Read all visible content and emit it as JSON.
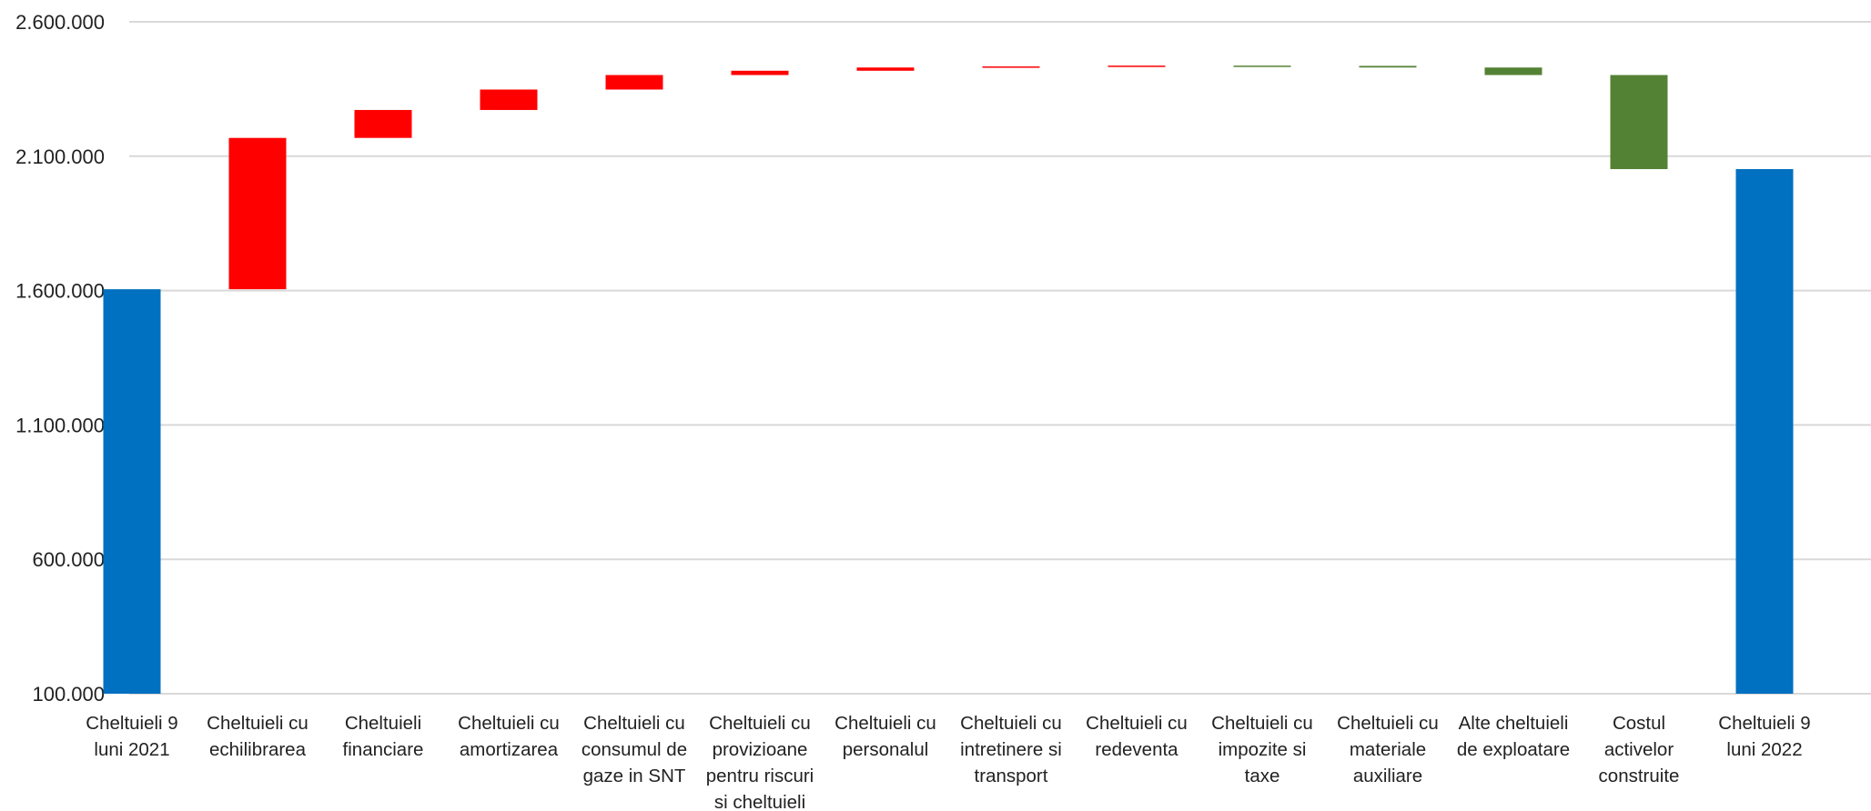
{
  "chart_data": {
    "type": "waterfall",
    "categories": [
      [
        "Cheltuieli 9",
        "luni 2021"
      ],
      [
        "Cheltuieli cu",
        "echilibrarea"
      ],
      [
        "Cheltuieli",
        "financiare"
      ],
      [
        "Cheltuieli cu",
        "amortizarea"
      ],
      [
        "Cheltuieli cu",
        "consumul de",
        "gaze in SNT"
      ],
      [
        "Cheltuieli cu",
        "provizioane",
        "pentru riscuri",
        "si cheltuieli"
      ],
      [
        "Cheltuieli cu",
        "personalul"
      ],
      [
        "Cheltuieli cu",
        "intretinere si",
        "transport"
      ],
      [
        "Cheltuieli cu",
        "redeventa"
      ],
      [
        "Cheltuieli cu",
        "impozite si",
        "taxe"
      ],
      [
        "Cheltuieli cu",
        "materiale",
        "auxiliare"
      ],
      [
        "Alte cheltuieli",
        "de exploatare"
      ],
      [
        "Costul",
        "activelor",
        "construite"
      ],
      [
        "Cheltuieli 9",
        "luni 2022"
      ]
    ],
    "bars": [
      {
        "start": 100000,
        "end": 1605000,
        "kind": "total"
      },
      {
        "start": 1605000,
        "end": 2168000,
        "kind": "increase"
      },
      {
        "start": 2168000,
        "end": 2272000,
        "kind": "increase"
      },
      {
        "start": 2272000,
        "end": 2348000,
        "kind": "increase"
      },
      {
        "start": 2348000,
        "end": 2402000,
        "kind": "increase"
      },
      {
        "start": 2402000,
        "end": 2418000,
        "kind": "increase"
      },
      {
        "start": 2418000,
        "end": 2430000,
        "kind": "increase"
      },
      {
        "start": 2430000,
        "end": 2434000,
        "kind": "increase"
      },
      {
        "start": 2434000,
        "end": 2437000,
        "kind": "increase"
      },
      {
        "start": 2437000,
        "end": 2436000,
        "kind": "decrease"
      },
      {
        "start": 2436000,
        "end": 2430000,
        "kind": "decrease"
      },
      {
        "start": 2430000,
        "end": 2402000,
        "kind": "decrease"
      },
      {
        "start": 2402000,
        "end": 2052000,
        "kind": "decrease"
      },
      {
        "start": 100000,
        "end": 2052000,
        "kind": "total"
      }
    ],
    "yticks": [
      "2.600.000",
      "2.100.000",
      "1.600.000",
      "1.100.000",
      "600.000",
      "100.000"
    ],
    "ytick_values": [
      2600000,
      2100000,
      1600000,
      1100000,
      600000,
      100000
    ],
    "ylim": [
      100000,
      2600000
    ],
    "grid": true,
    "colors": {
      "total": "#0070C0",
      "increase": "#FF0000",
      "decrease": "#548235",
      "grid": "#D9D9D9"
    }
  }
}
